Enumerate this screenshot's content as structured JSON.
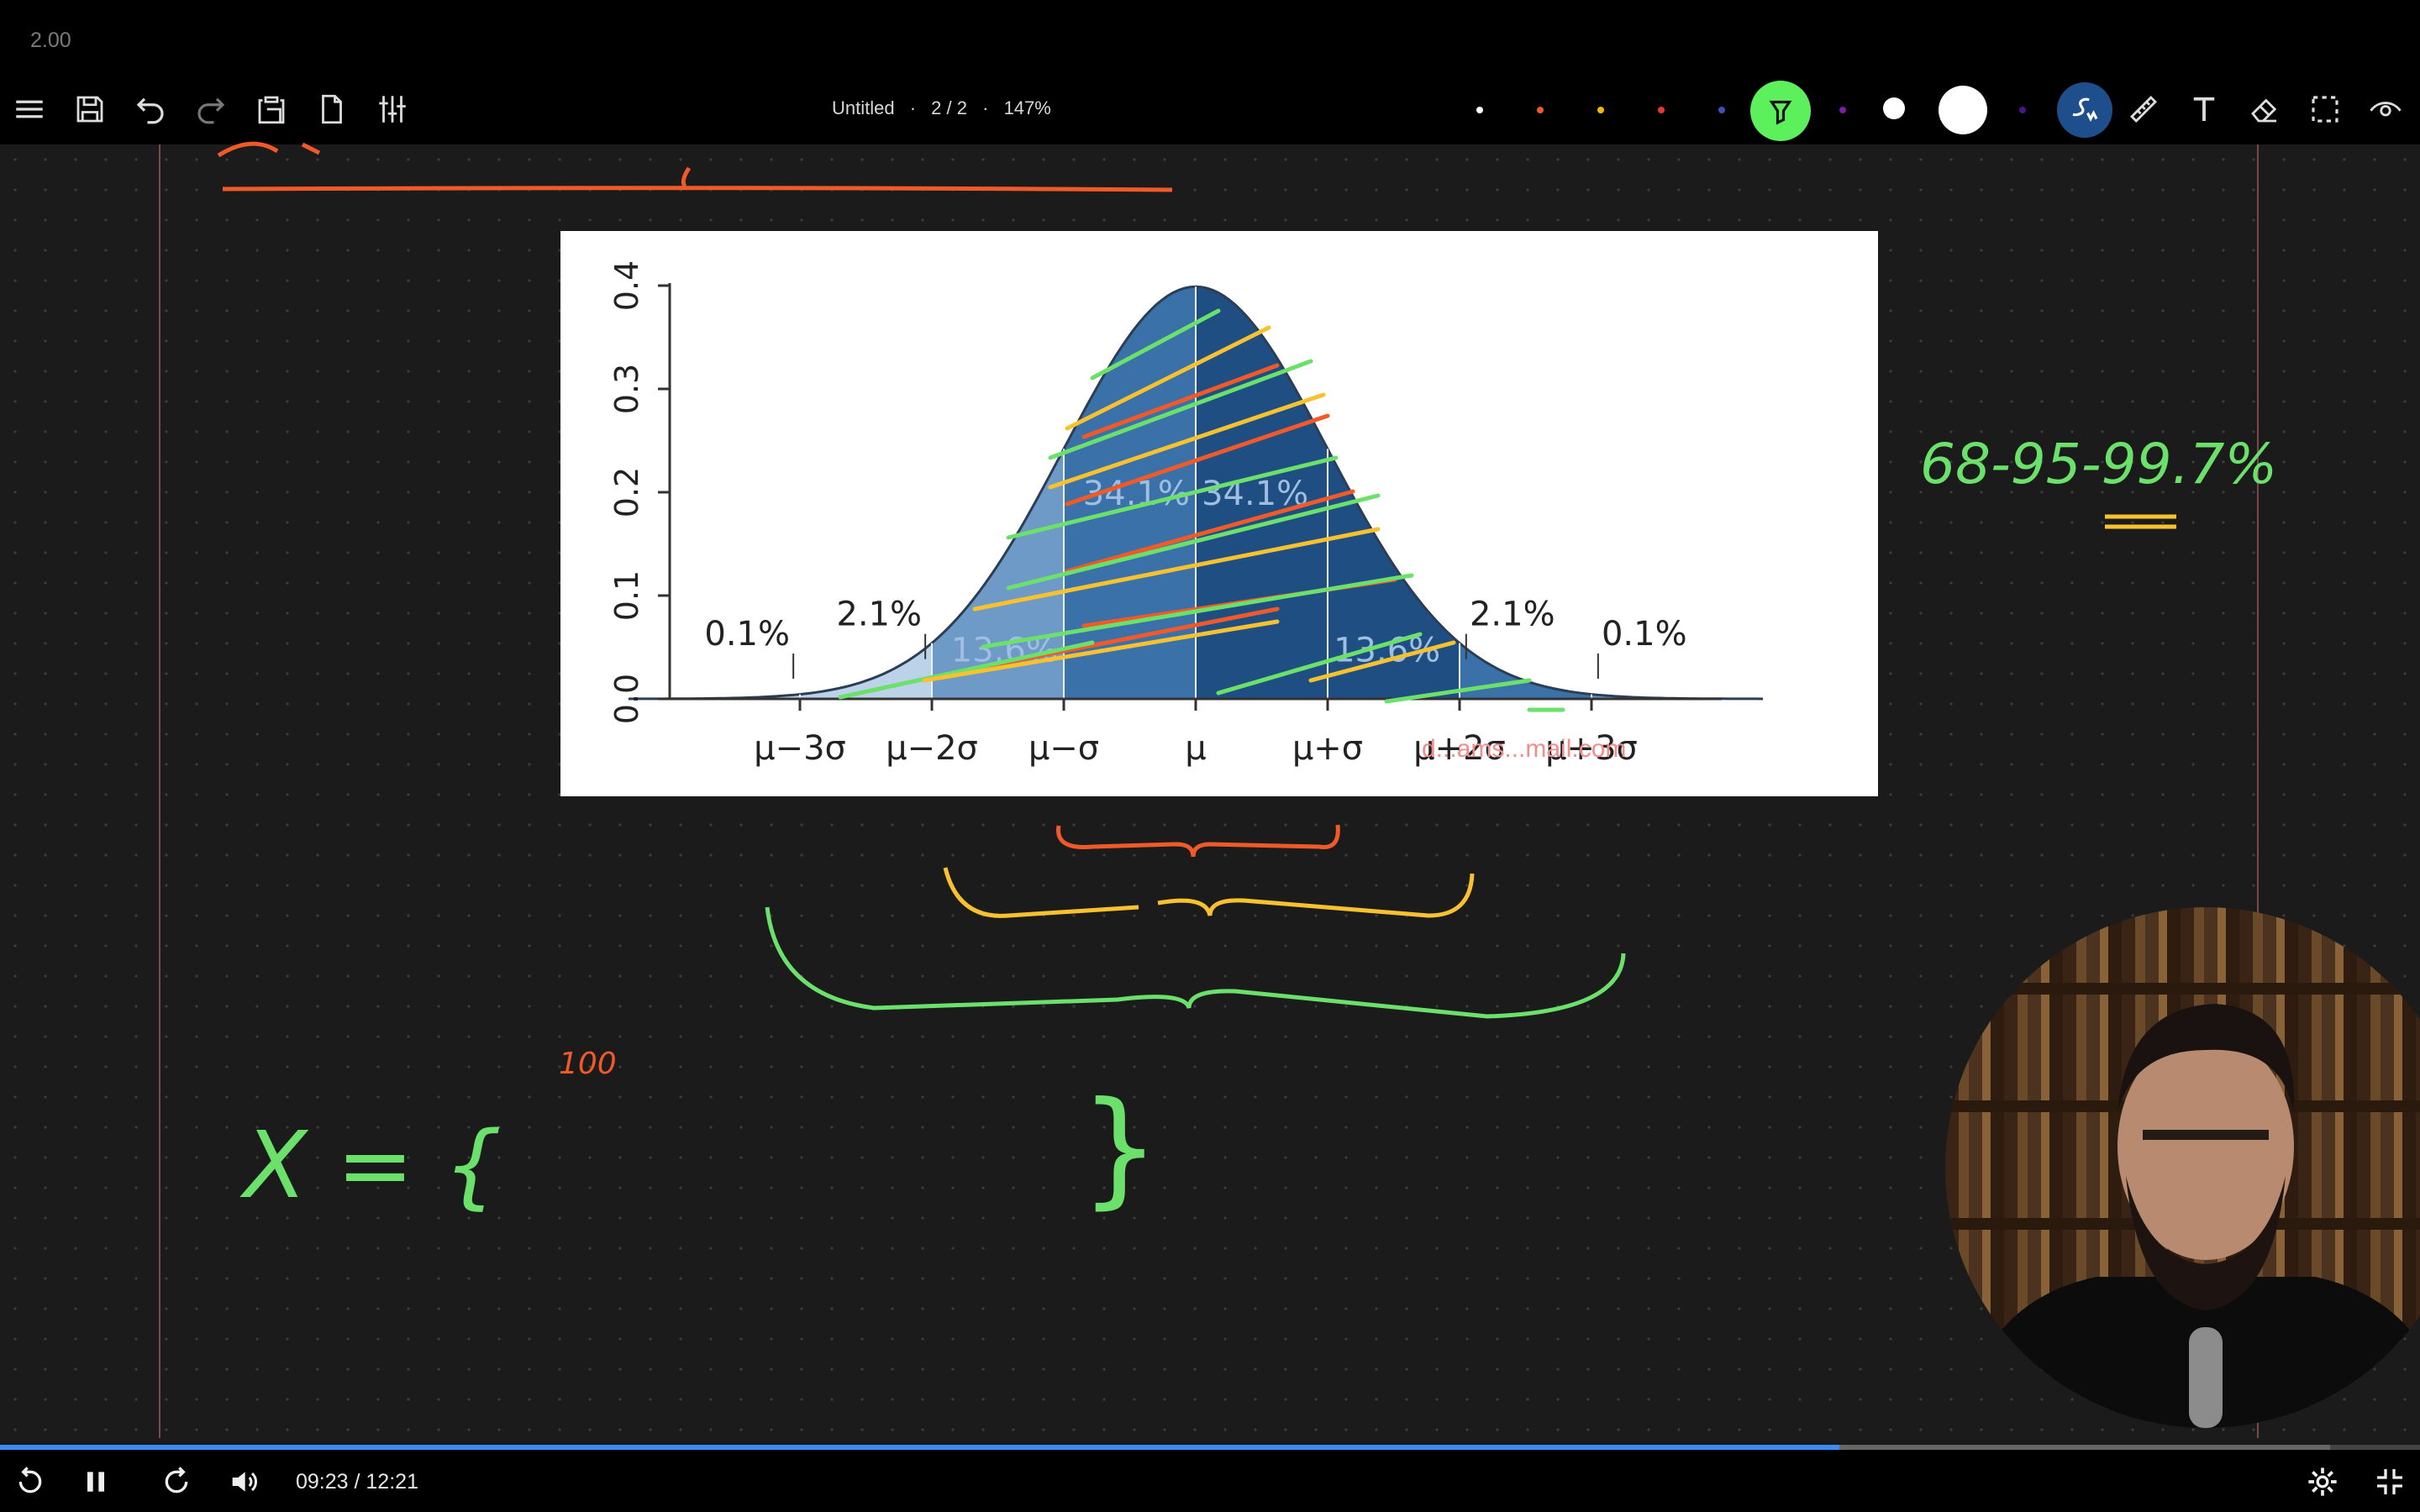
{
  "player": {
    "speed": "2.00",
    "time_current": "09:23",
    "time_total": "12:21",
    "time_sep": " / ",
    "progress": 0.76
  },
  "toolbar": {
    "title": "Untitled",
    "pages": "2 / 2",
    "zoom": "147%",
    "sep": "·",
    "left_icons": [
      "menu-icon",
      "save-icon",
      "undo-icon",
      "redo-icon",
      "clipboard-icon",
      "page-icon",
      "sliders-icon"
    ],
    "pen_colors": [
      "#ffffff",
      "#f05a28",
      "#f5b800",
      "#e53935",
      "#3f51b5",
      "#7b1fa2"
    ],
    "accent_green": "#5df05d",
    "accent_blue": "#1e4e8c"
  },
  "chart_data": {
    "type": "area",
    "x_ticks": [
      "μ−3σ",
      "μ−2σ",
      "μ−σ",
      "μ",
      "μ+σ",
      "μ+2σ",
      "μ+3σ"
    ],
    "y_ticks": [
      "0.0",
      "0.1",
      "0.2",
      "0.3",
      "0.4"
    ],
    "ylim": [
      0,
      0.4
    ],
    "xlim": [
      -4,
      4
    ],
    "percent_labels": [
      {
        "text": "0.1%"
      },
      {
        "text": "2.1%"
      },
      {
        "text": "13.6%"
      },
      {
        "text": "34.1%"
      },
      {
        "text": "34.1%"
      },
      {
        "text": "13.6%"
      },
      {
        "text": "2.1%"
      },
      {
        "text": "0.1%"
      }
    ],
    "watermark": "d...ams...mail.com",
    "band_colors": [
      "#bcd2e8",
      "#6d9ac6",
      "#3a71a8",
      "#1f4e83"
    ]
  },
  "ink": {
    "rule": "68-95-99.7%",
    "set_label": "X = {",
    "set_close": "}",
    "count": "100",
    "colors": {
      "orange": "#f05a28",
      "yellow": "#f7c12f",
      "green": "#6be06b"
    }
  }
}
